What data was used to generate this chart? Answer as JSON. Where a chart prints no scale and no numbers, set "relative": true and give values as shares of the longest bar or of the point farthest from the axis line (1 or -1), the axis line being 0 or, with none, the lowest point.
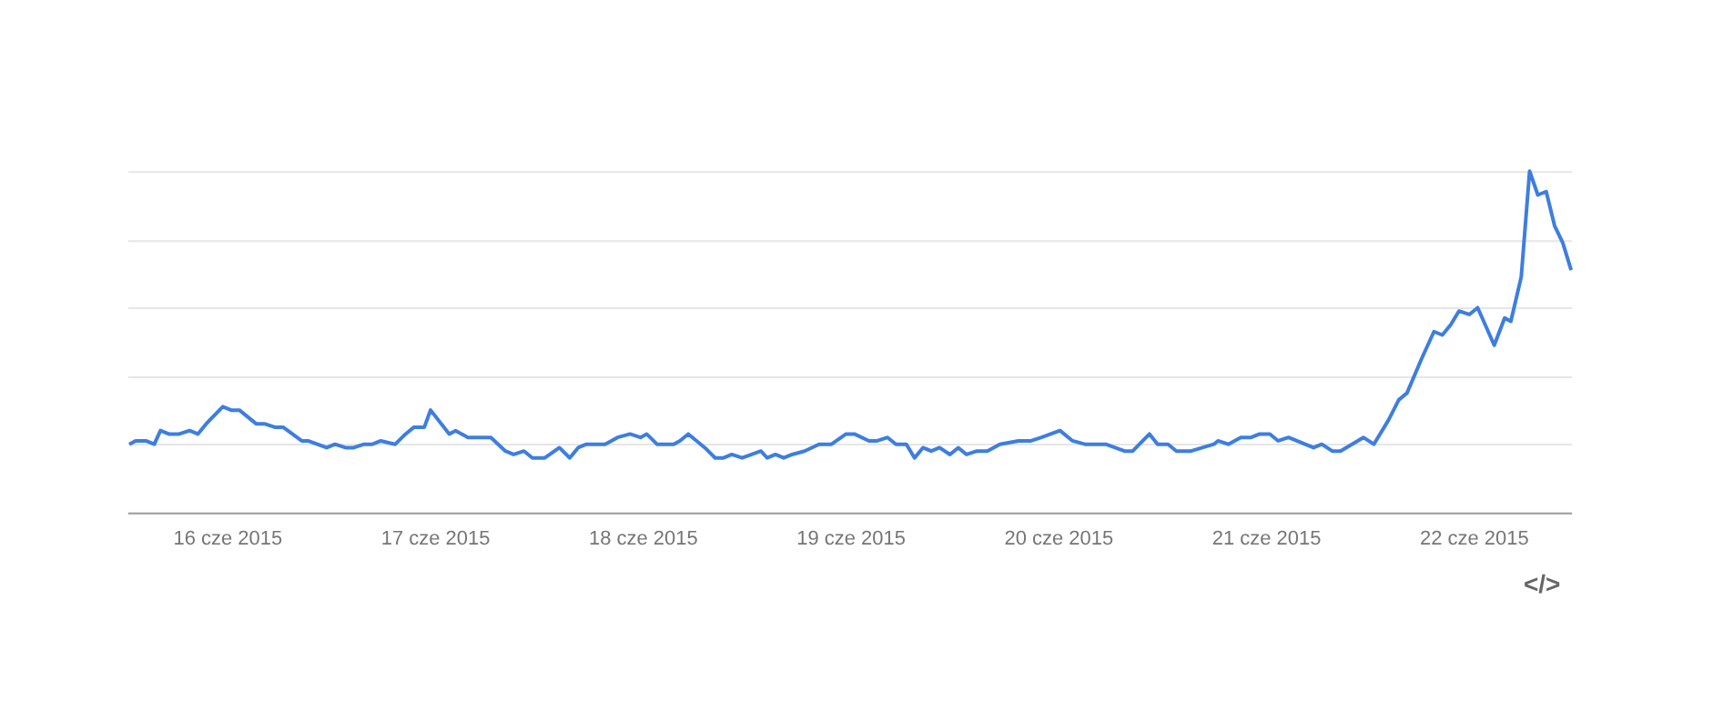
{
  "chart_data": {
    "type": "line",
    "relative": true,
    "grid": "y",
    "xlim": [
      "2015-06-15T12:29",
      "2015-06-22T11:17"
    ],
    "xticks": [
      {
        "value": "2015-06-16",
        "label": "16 cze 2015"
      },
      {
        "value": "2015-06-17",
        "label": "17 cze 2015"
      },
      {
        "value": "2015-06-18",
        "label": "18 cze 2015"
      },
      {
        "value": "2015-06-19",
        "label": "19 cze 2015"
      },
      {
        "value": "2015-06-20",
        "label": "20 cze 2015"
      },
      {
        "value": "2015-06-21",
        "label": "21 cze 2015"
      },
      {
        "value": "2015-06-22",
        "label": "22 cze 2015"
      }
    ],
    "annotations": [
      "</>"
    ],
    "series": [
      {
        "color": "#3d7ee0",
        "x": [
          "2015-06-15T12:43",
          "2015-06-15T13:26",
          "2015-06-15T14:38",
          "2015-06-15T15:36",
          "2015-06-15T16:19",
          "2015-06-15T17:17",
          "2015-06-15T18:29",
          "2015-06-15T19:41",
          "2015-06-15T20:38",
          "2015-06-15T21:36",
          "2015-06-15T23:31",
          "2015-06-16T00:29",
          "2015-06-16T01:26",
          "2015-06-16T03:22",
          "2015-06-16T04:19",
          "2015-06-16T05:31",
          "2015-06-16T06:29",
          "2015-06-16T08:38",
          "2015-06-16T09:22",
          "2015-06-16T11:31",
          "2015-06-16T12:29",
          "2015-06-16T13:41",
          "2015-06-16T14:38",
          "2015-06-16T15:50",
          "2015-06-16T16:48",
          "2015-06-16T17:46",
          "2015-06-16T19:26",
          "2015-06-16T20:38",
          "2015-06-16T21:36",
          "2015-06-16T22:48",
          "2015-06-16T23:31",
          "2015-06-17T01:41",
          "2015-06-17T02:24",
          "2015-06-17T03:50",
          "2015-06-17T05:02",
          "2015-06-17T06:29",
          "2015-06-17T08:10",
          "2015-06-17T09:07",
          "2015-06-17T10:19",
          "2015-06-17T11:17",
          "2015-06-17T12:43",
          "2015-06-17T14:24",
          "2015-06-17T15:36",
          "2015-06-17T16:34",
          "2015-06-17T17:31",
          "2015-06-17T19:41",
          "2015-06-17T21:07",
          "2015-06-17T22:34",
          "2015-06-17T23:46",
          "2015-06-18T00:29",
          "2015-06-18T01:41",
          "2015-06-18T03:36",
          "2015-06-18T04:19",
          "2015-06-18T05:17",
          "2015-06-18T07:12",
          "2015-06-18T08:24",
          "2015-06-18T09:22",
          "2015-06-18T10:19",
          "2015-06-18T11:31",
          "2015-06-18T13:41",
          "2015-06-18T14:24",
          "2015-06-18T15:22",
          "2015-06-18T16:19",
          "2015-06-18T17:17",
          "2015-06-18T18:43",
          "2015-06-18T20:24",
          "2015-06-18T21:50",
          "2015-06-18T23:31",
          "2015-06-19T00:29",
          "2015-06-19T02:10",
          "2015-06-19T03:07",
          "2015-06-19T04:19",
          "2015-06-19T05:17",
          "2015-06-19T06:29",
          "2015-06-19T07:26",
          "2015-06-19T08:24",
          "2015-06-19T09:22",
          "2015-06-19T10:19",
          "2015-06-19T11:31",
          "2015-06-19T12:29",
          "2015-06-19T13:26",
          "2015-06-19T14:38",
          "2015-06-19T15:50",
          "2015-06-19T17:17",
          "2015-06-19T19:26",
          "2015-06-19T20:53",
          "2015-06-19T22:05",
          "2015-06-20T00:14",
          "2015-06-20T01:41",
          "2015-06-20T03:07",
          "2015-06-20T05:31",
          "2015-06-20T07:41",
          "2015-06-20T08:38",
          "2015-06-20T10:34",
          "2015-06-20T11:31",
          "2015-06-20T12:43",
          "2015-06-20T13:41",
          "2015-06-20T15:22",
          "2015-06-20T18:00",
          "2015-06-20T18:29",
          "2015-06-20T19:41",
          "2015-06-20T21:07",
          "2015-06-20T22:19",
          "2015-06-20T23:17",
          "2015-06-21T00:29",
          "2015-06-21T01:26",
          "2015-06-21T02:38",
          "2015-06-21T05:31",
          "2015-06-21T06:29",
          "2015-06-21T07:41",
          "2015-06-21T08:38",
          "2015-06-21T11:17",
          "2015-06-21T12:29",
          "2015-06-21T14:10",
          "2015-06-21T15:22",
          "2015-06-21T16:19",
          "2015-06-21T18:00",
          "2015-06-21T19:26",
          "2015-06-21T20:24",
          "2015-06-21T21:22",
          "2015-06-21T22:19",
          "2015-06-21T23:31",
          "2015-06-22T00:29",
          "2015-06-22T02:24",
          "2015-06-22T03:36",
          "2015-06-22T04:19",
          "2015-06-22T05:31",
          "2015-06-22T06:29",
          "2015-06-22T07:26",
          "2015-06-22T08:24",
          "2015-06-22T09:22",
          "2015-06-22T10:19",
          "2015-06-22T11:17"
        ],
        "values": [
          0.2,
          0.21,
          0.21,
          0.2,
          0.24,
          0.23,
          0.23,
          0.24,
          0.23,
          0.26,
          0.31,
          0.3,
          0.3,
          0.26,
          0.26,
          0.25,
          0.25,
          0.21,
          0.21,
          0.19,
          0.2,
          0.19,
          0.19,
          0.2,
          0.2,
          0.21,
          0.2,
          0.23,
          0.25,
          0.25,
          0.3,
          0.23,
          0.24,
          0.22,
          0.22,
          0.22,
          0.18,
          0.17,
          0.18,
          0.16,
          0.16,
          0.19,
          0.16,
          0.19,
          0.2,
          0.2,
          0.22,
          0.23,
          0.22,
          0.23,
          0.2,
          0.2,
          0.21,
          0.23,
          0.19,
          0.16,
          0.16,
          0.17,
          0.16,
          0.18,
          0.16,
          0.17,
          0.16,
          0.17,
          0.18,
          0.2,
          0.2,
          0.23,
          0.23,
          0.21,
          0.21,
          0.22,
          0.2,
          0.2,
          0.16,
          0.19,
          0.18,
          0.19,
          0.17,
          0.19,
          0.17,
          0.18,
          0.18,
          0.2,
          0.21,
          0.21,
          0.22,
          0.24,
          0.21,
          0.2,
          0.2,
          0.18,
          0.18,
          0.23,
          0.2,
          0.2,
          0.18,
          0.18,
          0.2,
          0.21,
          0.2,
          0.22,
          0.22,
          0.23,
          0.23,
          0.21,
          0.22,
          0.19,
          0.2,
          0.18,
          0.18,
          0.22,
          0.2,
          0.27,
          0.33,
          0.35,
          0.45,
          0.53,
          0.52,
          0.55,
          0.59,
          0.58,
          0.6,
          0.49,
          0.57,
          0.56,
          0.69,
          1,
          0.93,
          0.94,
          0.84,
          0.79,
          0.71
        ]
      }
    ]
  }
}
